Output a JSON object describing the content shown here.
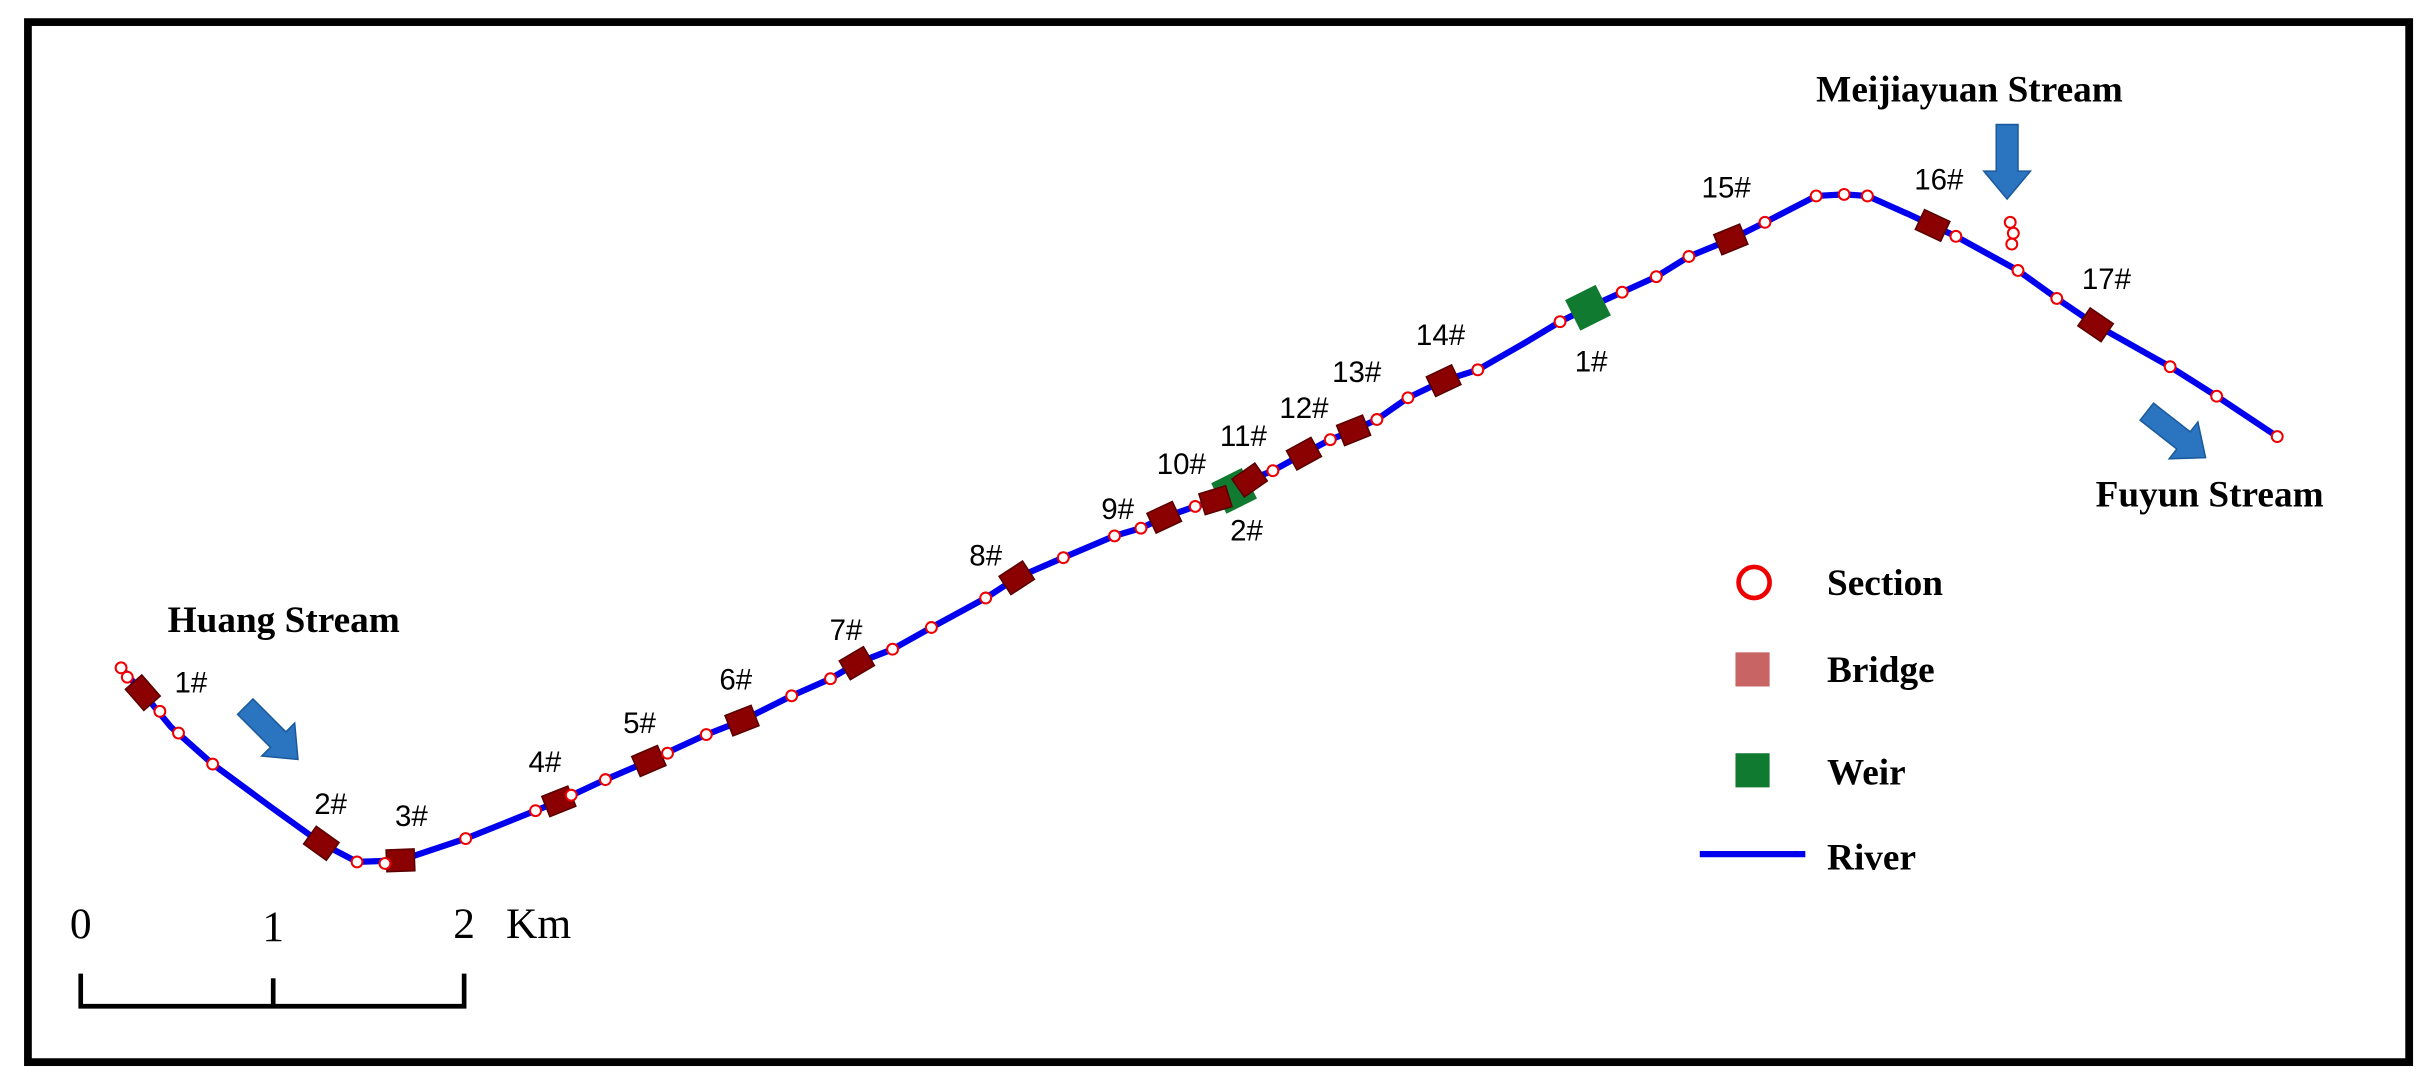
{
  "streams": [
    "Huang Stream",
    "Meijiayuan Stream",
    "Fuyun Stream"
  ],
  "bridges": [
    "1#",
    "2#",
    "3#",
    "4#",
    "5#",
    "6#",
    "7#",
    "8#",
    "9#",
    "10#",
    "11#",
    "12#",
    "13#",
    "14#",
    "15#",
    "16#",
    "17#"
  ],
  "weirs": [
    "1#",
    "2#"
  ],
  "legend": [
    "Section",
    "Bridge",
    "Weir",
    "River"
  ],
  "scale_bar": {
    "ticks": [
      0,
      1,
      2
    ],
    "unit": "Km"
  }
}
